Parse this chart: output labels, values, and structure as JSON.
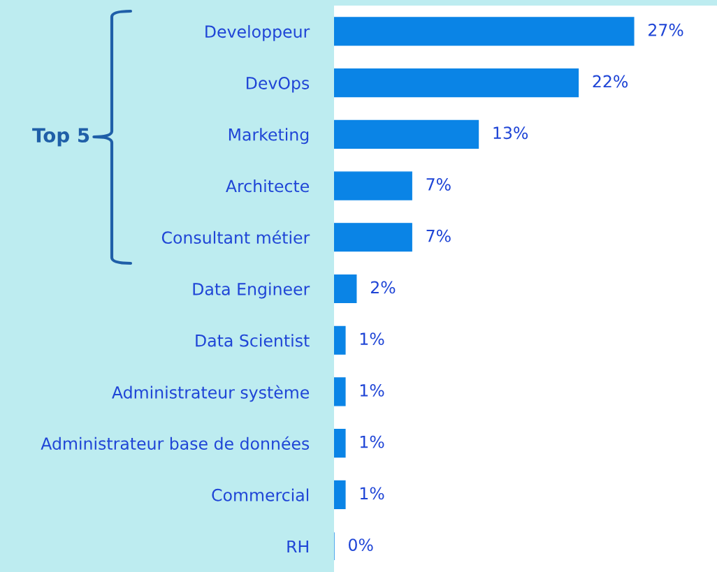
{
  "chart_data": {
    "type": "bar",
    "orientation": "horizontal",
    "categories": [
      "Developpeur",
      "DevOps",
      "Marketing",
      "Architecte",
      "Consultant métier",
      "Data Engineer",
      "Data Scientist",
      "Administrateur système",
      "Administrateur base de données",
      "Commercial",
      "RH"
    ],
    "values": [
      27,
      22,
      13,
      7,
      7,
      2,
      1,
      1,
      1,
      1,
      0
    ],
    "value_labels": [
      "27%",
      "22%",
      "13%",
      "7%",
      "7%",
      "2%",
      "1%",
      "1%",
      "1%",
      "1%",
      "0%"
    ],
    "color": "#0a84e6",
    "xlim": [
      0,
      34.5
    ],
    "tick_labels": "y",
    "grid": false,
    "legend": false,
    "annotations": [
      "Top 5"
    ]
  }
}
